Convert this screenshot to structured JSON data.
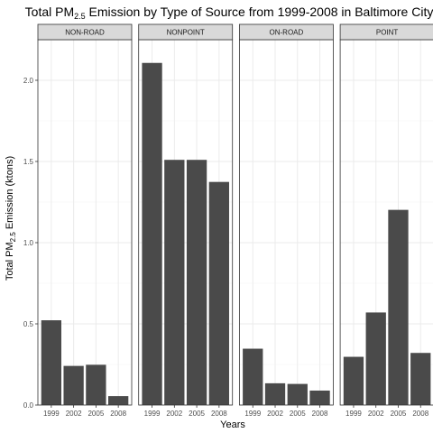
{
  "chart_data": {
    "type": "bar",
    "title": {
      "prefix": "Total PM",
      "sub": "2.5",
      "suffix": " Emission by Type of Source from 1999-2008 in Baltimore City"
    },
    "xlabel": "Years",
    "ylabel": {
      "prefix": "Total PM",
      "sub": "2.5",
      "suffix": " Emission (ktons)"
    },
    "categories": [
      "1999",
      "2002",
      "2005",
      "2008"
    ],
    "ylim": [
      0,
      2.25
    ],
    "yticks": [
      0.0,
      0.5,
      1.0,
      1.5,
      2.0
    ],
    "ytick_labels": [
      "0.0",
      "0.5",
      "1.0",
      "1.5",
      "2.0"
    ],
    "grid": true,
    "facets": [
      {
        "name": "NON-ROAD",
        "values": [
          0.522,
          0.241,
          0.248,
          0.055
        ]
      },
      {
        "name": "NONPOINT",
        "values": [
          2.107,
          1.51,
          1.51,
          1.374
        ]
      },
      {
        "name": "ON-ROAD",
        "values": [
          0.347,
          0.134,
          0.13,
          0.089
        ]
      },
      {
        "name": "POINT",
        "values": [
          0.297,
          0.57,
          1.202,
          0.321
        ]
      }
    ],
    "colors": {
      "bar": "#4a4a4a",
      "strip_fill": "#d9d9d9",
      "panel_border": "#333333",
      "grid_major": "#ebebeb",
      "grid_minor": "#f5f5f5"
    }
  }
}
